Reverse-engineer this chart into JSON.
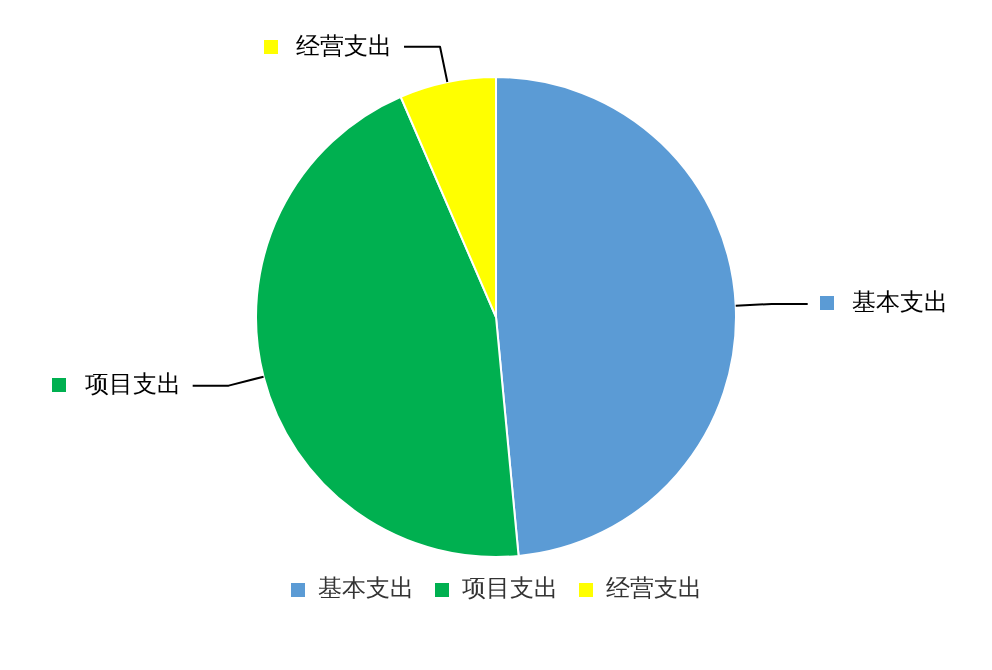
{
  "chart_data": {
    "type": "pie",
    "categories": [
      "基本支出",
      "项目支出",
      "经营支出"
    ],
    "values": [
      48.5,
      45,
      6.5
    ],
    "colors": [
      "#5b9bd5",
      "#00b050",
      "#ffff00"
    ],
    "legend": "bottom",
    "data_labels": false
  }
}
